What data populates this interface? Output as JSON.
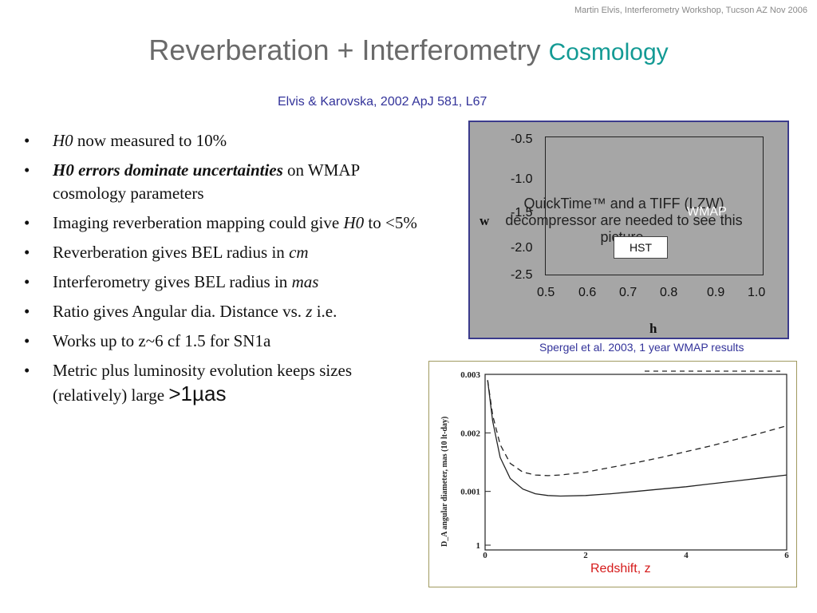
{
  "header": {
    "note": "Martin Elvis, Interferometry Workshop, Tucson AZ Nov 2006"
  },
  "title": {
    "main": "Reverberation + Interferometry",
    "sub": "Cosmology"
  },
  "citation": "Elvis & Karovska, 2002 ApJ 581, L67",
  "bullets": [
    {
      "parts": [
        {
          "t": "H0",
          "i": true
        },
        {
          "t": " now measured to 10%"
        }
      ]
    },
    {
      "parts": [
        {
          "t": "H0 errors dominate uncertainties",
          "i": true,
          "b": true
        },
        {
          "t": " on WMAP cosmology parameters"
        }
      ]
    },
    {
      "parts": [
        {
          "t": "Imaging reverberation mapping could give "
        },
        {
          "t": "H0",
          "i": true
        },
        {
          "t": " to <5%"
        }
      ]
    },
    {
      "parts": [
        {
          "t": "Reverberation gives BEL radius in "
        },
        {
          "t": "cm",
          "i": true
        }
      ]
    },
    {
      "parts": [
        {
          "t": "Interferometry gives BEL radius in "
        },
        {
          "t": "mas",
          "i": true
        }
      ]
    },
    {
      "parts": [
        {
          "t": "Ratio gives Angular dia. Distance vs. "
        },
        {
          "t": "z",
          "i": true
        },
        {
          "t": " i.e."
        }
      ]
    },
    {
      "parts": [
        {
          "t": "Works up to z~6 cf 1.5 for SN1a"
        }
      ]
    },
    {
      "parts": [
        {
          "t": "Metric plus luminosity evolution keeps sizes (relatively) large "
        },
        {
          "t": ">1µas",
          "big": true
        }
      ]
    }
  ],
  "wmap_figure": {
    "y_label": "w",
    "x_label": "h",
    "y_ticks": [
      "-0.5",
      "-1.0",
      "-1.5",
      "-2.0",
      "-2.5"
    ],
    "x_ticks": [
      "0.5",
      "0.6",
      "0.7",
      "0.8",
      "0.9",
      "1.0"
    ],
    "overlay_text": "QuickTime™ and a TIFF (LZW) decompressor are needed to see this picture.",
    "wmap_label": "WMAP",
    "hst_label": "HST",
    "caption": "Spergel et al. 2003, 1 year WMAP results"
  },
  "chart_data": {
    "type": "line",
    "xlabel": "Redshift, z",
    "ylabel": "D_A angular diameter, mas (10 lt-day)",
    "xlim": [
      0,
      6
    ],
    "ylim": [
      0.0,
      0.003
    ],
    "y_ticks": [
      "0.003",
      "0.002",
      "0.001",
      "1"
    ],
    "x_ticks": [
      "0",
      "2",
      "4",
      "6"
    ],
    "series": [
      {
        "style": "dashed",
        "x": [
          0.05,
          0.15,
          0.3,
          0.5,
          0.75,
          1.0,
          1.25,
          1.5,
          2,
          2.5,
          3,
          3.5,
          4,
          4.5,
          5,
          5.5,
          6
        ],
        "y": [
          0.0029,
          0.0023,
          0.0018,
          0.00148,
          0.00133,
          0.00128,
          0.00127,
          0.00128,
          0.00133,
          0.00141,
          0.00149,
          0.00158,
          0.00168,
          0.00178,
          0.00189,
          0.002,
          0.00212
        ]
      },
      {
        "style": "solid",
        "x": [
          0.05,
          0.15,
          0.3,
          0.5,
          0.75,
          1.0,
          1.25,
          1.5,
          2,
          2.5,
          3,
          3.5,
          4,
          4.5,
          5,
          5.5,
          6
        ],
        "y": [
          0.0029,
          0.0022,
          0.00158,
          0.00122,
          0.00104,
          0.00096,
          0.00093,
          0.00092,
          0.00093,
          0.00096,
          0.001,
          0.00104,
          0.00108,
          0.00113,
          0.00118,
          0.00123,
          0.00128
        ]
      }
    ]
  },
  "colors": {
    "title": "#6a6a6a",
    "subtitle": "#139a94",
    "citation": "#33339a",
    "panel_bg": "#a6a6a6",
    "panel_border": "#3b3b8c",
    "redshift_label": "#d51a1a"
  }
}
